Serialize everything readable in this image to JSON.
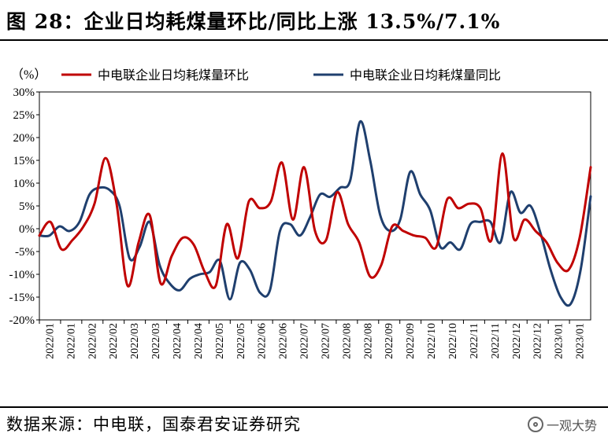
{
  "header": {
    "title": "图 28：企业日均耗煤量环比/同比上涨 13.5%/7.1%"
  },
  "footer": {
    "source": "数据来源：中电联，国泰君安证券研究",
    "watermark": "一观大势"
  },
  "chart_data": {
    "type": "line",
    "title": "企业日均耗煤量环比/同比上涨 13.5%/7.1%",
    "ylabel": "（%）",
    "ylim": [
      -20,
      30
    ],
    "yticks": [
      30,
      25,
      20,
      15,
      10,
      5,
      0,
      -5,
      -10,
      -15,
      -20
    ],
    "ytick_labels": [
      "30%",
      "25%",
      "20%",
      "15%",
      "10%",
      "5%",
      "0%",
      "-5%",
      "-10%",
      "-15%",
      "-20%"
    ],
    "xtick_labels": [
      "2022/01",
      "2022/01",
      "2022/02",
      "2022/02",
      "2022/03",
      "2022/03",
      "2022/04",
      "2022/04",
      "2022/05",
      "2022/05",
      "2022/06",
      "2022/06",
      "2022/07",
      "2022/07",
      "2022/08",
      "2022/08",
      "2022/09",
      "2022/09",
      "2022/10",
      "2022/10",
      "2022/11",
      "2022/11",
      "2022/12",
      "2022/12",
      "2023/01",
      "2023/01"
    ],
    "legend": {
      "placement": "top"
    },
    "series": [
      {
        "name": "中电联企业日均耗煤量环比",
        "color": "#c00000",
        "values": [
          -1.5,
          1.5,
          -4.5,
          -2.5,
          0.5,
          5.5,
          15.5,
          5.5,
          -12.5,
          -3,
          3,
          -12,
          -6,
          -2,
          -3.5,
          -9.5,
          -12.5,
          1,
          -6.5,
          6,
          4.5,
          6,
          14.5,
          2,
          13.5,
          -0.5,
          -2.5,
          8,
          1,
          -3,
          -10.5,
          -8,
          0.5,
          -0.5,
          -1.5,
          -2,
          -4,
          6.5,
          4.5,
          5.5,
          4.5,
          -2.5,
          16.5,
          -2,
          2,
          -0.5,
          -3,
          -7.5,
          -9,
          -2,
          13.5
        ]
      },
      {
        "name": "中电联企业日均耗煤量同比",
        "color": "#1f3f6e",
        "values": [
          -1.5,
          -1.5,
          0.5,
          -0.5,
          1.5,
          7.5,
          9,
          8.5,
          5,
          -6.5,
          -4,
          1.5,
          -8,
          -12,
          -13.5,
          -11,
          -10,
          -9.5,
          -7,
          -15.5,
          -7.5,
          -9,
          -14,
          -13.5,
          -0.5,
          1,
          -1.5,
          2.5,
          7.5,
          7,
          9,
          10.5,
          23.5,
          15,
          3,
          -0.5,
          2,
          12.5,
          7.5,
          4,
          -4,
          -3,
          -4.5,
          1,
          1.5,
          1.5,
          -3,
          8,
          3.5,
          5,
          -1,
          -9,
          -15,
          -16.5,
          -9,
          7.1
        ]
      }
    ]
  }
}
